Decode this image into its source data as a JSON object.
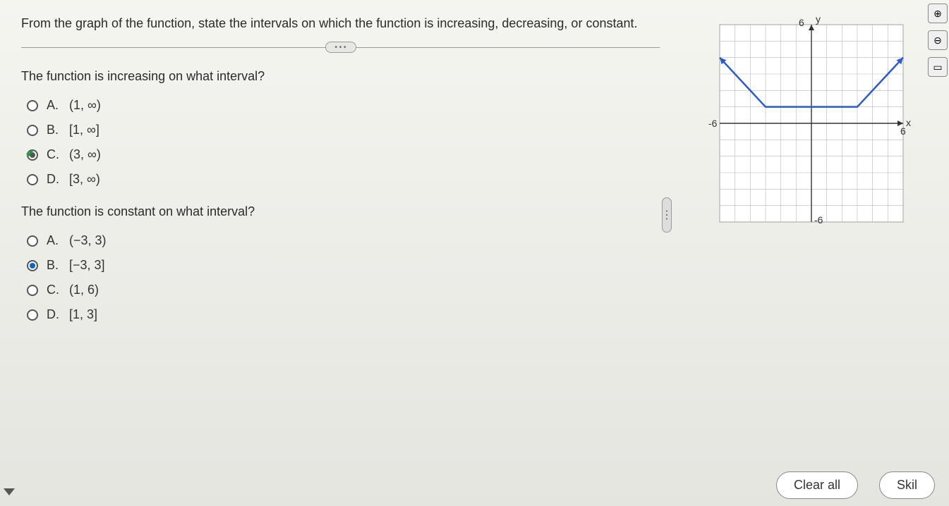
{
  "question": {
    "prompt": "From the graph of the function, state the  intervals on which the function is increasing, decreasing, or constant.",
    "sub1": {
      "text": "The function is increasing on what interval?",
      "options": [
        {
          "letter": "A.",
          "value": "(1, ∞)",
          "state": "unselected"
        },
        {
          "letter": "B.",
          "value": "[1, ∞]",
          "state": "unselected"
        },
        {
          "letter": "C.",
          "value": "(3, ∞)",
          "state": "checked"
        },
        {
          "letter": "D.",
          "value": "[3, ∞)",
          "state": "unselected"
        }
      ]
    },
    "sub2": {
      "text": "The function is constant on what interval?",
      "options": [
        {
          "letter": "A.",
          "value": "(−3, 3)",
          "state": "unselected"
        },
        {
          "letter": "B.",
          "value": "[−3, 3]",
          "state": "selected"
        },
        {
          "letter": "C.",
          "value": "(1, 6)",
          "state": "unselected"
        },
        {
          "letter": "D.",
          "value": "[1, 3]",
          "state": "unselected"
        }
      ]
    }
  },
  "graph": {
    "xlim": [
      -6,
      6
    ],
    "ylim": [
      -6,
      6
    ],
    "xtick_step": 1,
    "ytick_step": 1,
    "axis_labels": {
      "x": "x",
      "y": "y",
      "xneg": "-6",
      "xpos": "6",
      "ytop": "6",
      "ybot": "-6"
    },
    "grid_color": "#b8b8b8",
    "axis_color": "#333333",
    "background_color": "#ffffff",
    "line_color": "#2a5bcc",
    "line_width": 2.5,
    "points": [
      {
        "x": -6,
        "y": 4
      },
      {
        "x": -3,
        "y": 1
      },
      {
        "x": 3,
        "y": 1
      },
      {
        "x": 6,
        "y": 4
      }
    ],
    "arrows": true,
    "label_fontsize": 14,
    "label_color": "#333333"
  },
  "buttons": {
    "clear_all": "Clear all",
    "skill": "Skil"
  }
}
